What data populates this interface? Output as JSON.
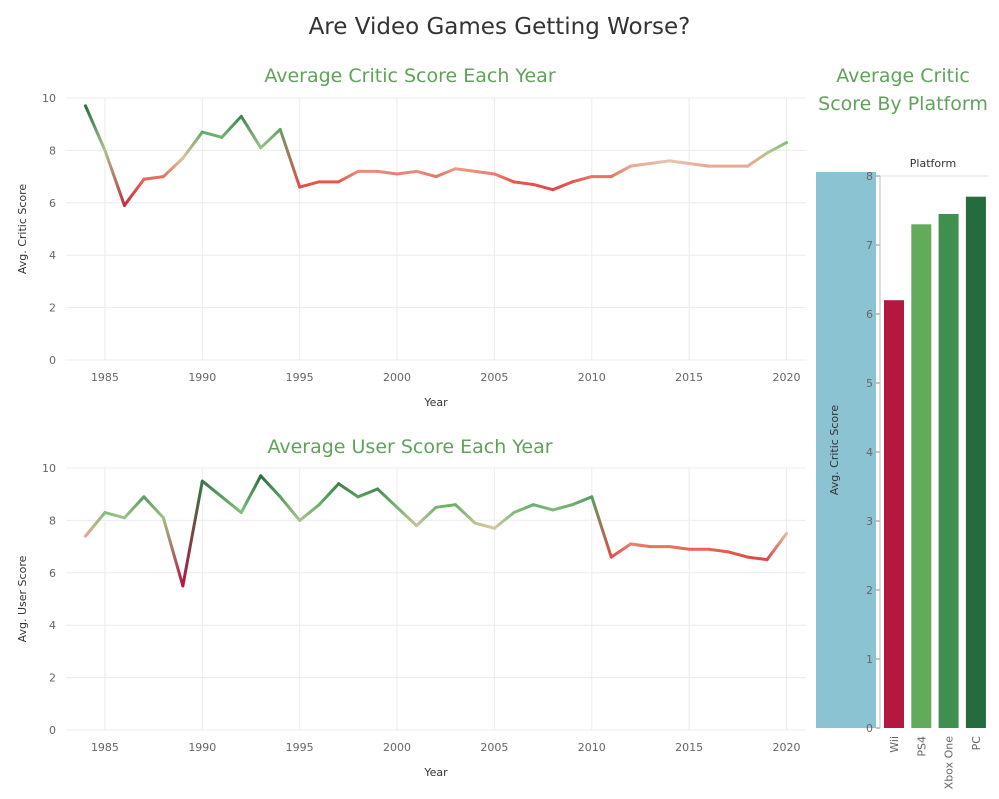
{
  "title": "Are Video Games Getting Worse?",
  "chart_data": [
    {
      "type": "line",
      "title": "Average Critic Score Each Year",
      "xlabel": "Year",
      "ylabel": "Avg. Critic Score",
      "xlim": [
        1983,
        2021
      ],
      "ylim": [
        0,
        10
      ],
      "x_ticks": [
        1985,
        1990,
        1995,
        2000,
        2005,
        2010,
        2015,
        2020
      ],
      "y_ticks": [
        0,
        2,
        4,
        6,
        8,
        10
      ],
      "grid": true,
      "x": [
        1984,
        1985,
        1986,
        1987,
        1988,
        1989,
        1990,
        1991,
        1992,
        1993,
        1994,
        1995,
        1996,
        1997,
        1998,
        1999,
        2000,
        2001,
        2002,
        2003,
        2004,
        2005,
        2006,
        2007,
        2008,
        2009,
        2010,
        2011,
        2012,
        2013,
        2014,
        2015,
        2016,
        2017,
        2018,
        2019,
        2020
      ],
      "values": [
        9.7,
        8.0,
        5.9,
        6.9,
        7.0,
        7.7,
        8.7,
        8.5,
        9.3,
        8.1,
        8.8,
        6.6,
        6.8,
        6.8,
        7.2,
        7.2,
        7.1,
        7.2,
        7.0,
        7.3,
        7.2,
        7.1,
        6.8,
        6.7,
        6.5,
        6.8,
        7.0,
        7.0,
        7.4,
        7.5,
        7.6,
        7.5,
        7.4,
        7.4,
        7.4,
        7.9,
        8.3
      ]
    },
    {
      "type": "line",
      "title": "Average User Score Each Year",
      "xlabel": "Year",
      "ylabel": "Avg. User Score",
      "xlim": [
        1983,
        2021
      ],
      "ylim": [
        0,
        10
      ],
      "x_ticks": [
        1985,
        1990,
        1995,
        2000,
        2005,
        2010,
        2015,
        2020
      ],
      "y_ticks": [
        0,
        2,
        4,
        6,
        8,
        10
      ],
      "grid": true,
      "x": [
        1984,
        1985,
        1986,
        1987,
        1988,
        1989,
        1990,
        1991,
        1992,
        1993,
        1994,
        1995,
        1996,
        1997,
        1998,
        1999,
        2000,
        2001,
        2002,
        2003,
        2004,
        2005,
        2006,
        2007,
        2008,
        2009,
        2010,
        2011,
        2012,
        2013,
        2014,
        2015,
        2016,
        2017,
        2018,
        2019,
        2020
      ],
      "values": [
        7.4,
        8.3,
        8.1,
        8.9,
        8.1,
        5.5,
        9.5,
        8.9,
        8.3,
        9.7,
        8.9,
        8.0,
        8.6,
        9.4,
        8.9,
        9.2,
        8.5,
        7.8,
        8.5,
        8.6,
        7.9,
        7.7,
        8.3,
        8.6,
        8.4,
        8.6,
        8.9,
        6.6,
        7.1,
        7.0,
        7.0,
        6.9,
        6.9,
        6.8,
        6.6,
        6.5,
        7.5
      ]
    },
    {
      "type": "bar",
      "title": "Average Critic Score By Platform",
      "header": "Platform",
      "ylabel": "Avg. Critic Score",
      "ylim": [
        0,
        8
      ],
      "y_ticks": [
        0,
        1,
        2,
        3,
        4,
        5,
        6,
        7,
        8
      ],
      "categories": [
        "Wii",
        "PS4",
        "Xbox One",
        "PC"
      ],
      "values": [
        6.2,
        7.3,
        7.45,
        7.7
      ],
      "colors": [
        "#b5183f",
        "#62ab5a",
        "#3f9050",
        "#256b3e"
      ],
      "axis_band_color": "#8cc3d3"
    }
  ],
  "colors": {
    "title": "#333333",
    "subtitle": "#5fa35a",
    "scale_low": "#b5183f",
    "scale_mid_low": "#e8574d",
    "scale_mid": "#e8c3a8",
    "scale_mid_high": "#7fc07a",
    "scale_high": "#2a6e3f"
  }
}
